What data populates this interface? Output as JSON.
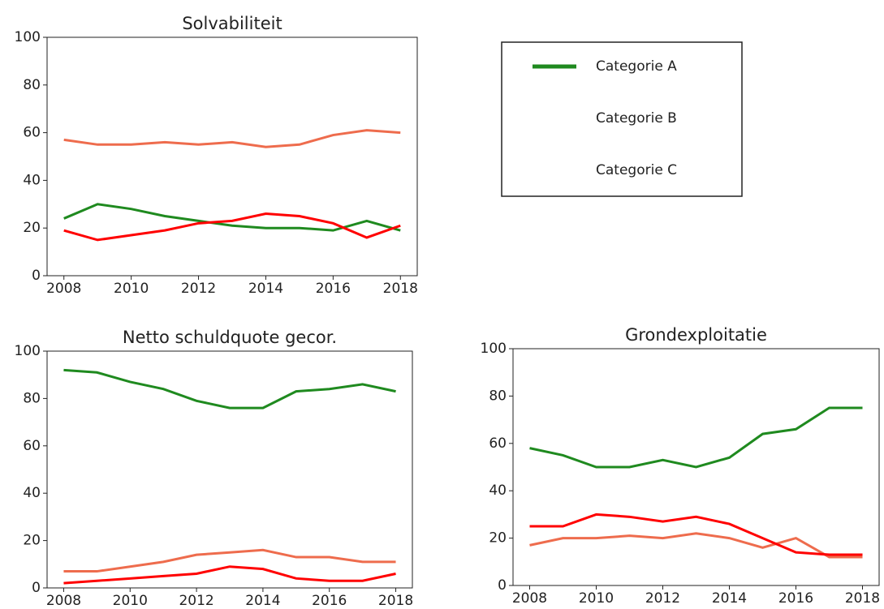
{
  "chart_data": [
    {
      "type": "line",
      "title": "Solvabiliteit",
      "x": [
        2008,
        2009,
        2010,
        2011,
        2012,
        2013,
        2014,
        2015,
        2016,
        2017,
        2018
      ],
      "xlim": [
        2007.5,
        2018.5
      ],
      "xticks": [
        2008,
        2010,
        2012,
        2014,
        2016,
        2018
      ],
      "ylim": [
        0,
        100
      ],
      "yticks": [
        0,
        20,
        40,
        60,
        80,
        100
      ],
      "series": [
        {
          "color": "#1f8a1f",
          "values": [
            24,
            30,
            28,
            25,
            23,
            21,
            20,
            20,
            19,
            23,
            19
          ]
        },
        {
          "color": "#ee6c4d",
          "values": [
            57,
            55,
            55,
            56,
            55,
            56,
            54,
            55,
            59,
            61,
            60
          ]
        },
        {
          "color": "#ff0000",
          "values": [
            19,
            15,
            17,
            19,
            22,
            23,
            26,
            25,
            22,
            16,
            21
          ]
        }
      ]
    },
    {
      "type": "line",
      "title": "Netto schuldquote gecor.",
      "x": [
        2008,
        2009,
        2010,
        2011,
        2012,
        2013,
        2014,
        2015,
        2016,
        2017,
        2018
      ],
      "xlim": [
        2007.5,
        2018.5
      ],
      "xticks": [
        2008,
        2010,
        2012,
        2014,
        2016,
        2018
      ],
      "ylim": [
        0,
        100
      ],
      "yticks": [
        0,
        20,
        40,
        60,
        80,
        100
      ],
      "series": [
        {
          "color": "#1f8a1f",
          "values": [
            92,
            91,
            87,
            84,
            79,
            76,
            76,
            83,
            84,
            86,
            83
          ]
        },
        {
          "color": "#ee6c4d",
          "values": [
            7,
            7,
            9,
            11,
            14,
            15,
            16,
            13,
            13,
            11,
            11
          ]
        },
        {
          "color": "#ff0000",
          "values": [
            2,
            3,
            4,
            5,
            6,
            9,
            8,
            4,
            3,
            3,
            6
          ]
        }
      ]
    },
    {
      "type": "line",
      "title": "Grondexploitatie",
      "x": [
        2008,
        2009,
        2010,
        2011,
        2012,
        2013,
        2014,
        2015,
        2016,
        2017,
        2018
      ],
      "xlim": [
        2007.5,
        2018.5
      ],
      "xticks": [
        2008,
        2010,
        2012,
        2014,
        2016,
        2018
      ],
      "ylim": [
        0,
        100
      ],
      "yticks": [
        0,
        20,
        40,
        60,
        80,
        100
      ],
      "series": [
        {
          "color": "#1f8a1f",
          "values": [
            58,
            55,
            50,
            50,
            53,
            50,
            54,
            64,
            66,
            75,
            75
          ]
        },
        {
          "color": "#ee6c4d",
          "values": [
            17,
            20,
            20,
            21,
            20,
            22,
            20,
            16,
            20,
            12,
            12
          ]
        },
        {
          "color": "#ff0000",
          "values": [
            25,
            25,
            30,
            29,
            27,
            29,
            26,
            20,
            14,
            13,
            13
          ]
        }
      ]
    }
  ],
  "legend": {
    "entries": [
      {
        "name": "Categorie A",
        "color": "#1f8a1f"
      },
      {
        "name": "Categorie B",
        "color": "#ffffff"
      },
      {
        "name": "Categorie C",
        "color": "#ffffff"
      }
    ]
  }
}
